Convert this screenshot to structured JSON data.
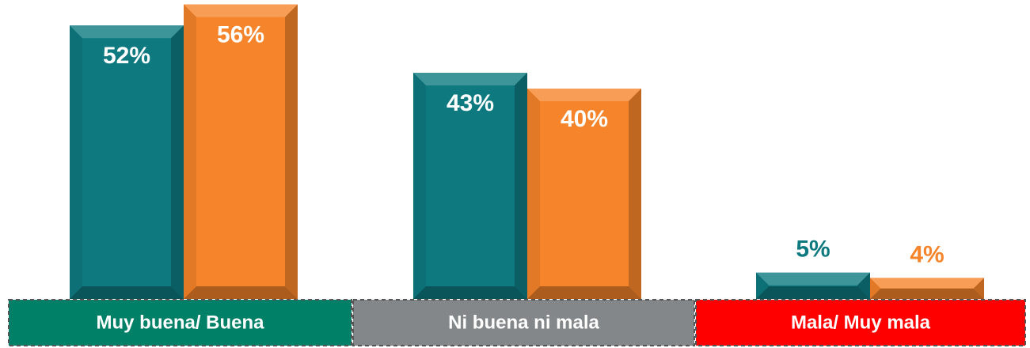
{
  "chart_data": {
    "type": "bar",
    "categories": [
      "Muy buena/ Buena",
      "Ni buena ni mala",
      "Mala/ Muy mala"
    ],
    "category_colors": [
      "#008066",
      "#848789",
      "#ff0000"
    ],
    "series": [
      {
        "color": "#0e7a80",
        "values": [
          52,
          43,
          5
        ],
        "value_labels": [
          "52%",
          "43%",
          "5%"
        ]
      },
      {
        "color": "#f5842a",
        "values": [
          56,
          40,
          4
        ],
        "value_labels": [
          "56%",
          "40%",
          "4%"
        ]
      }
    ]
  }
}
